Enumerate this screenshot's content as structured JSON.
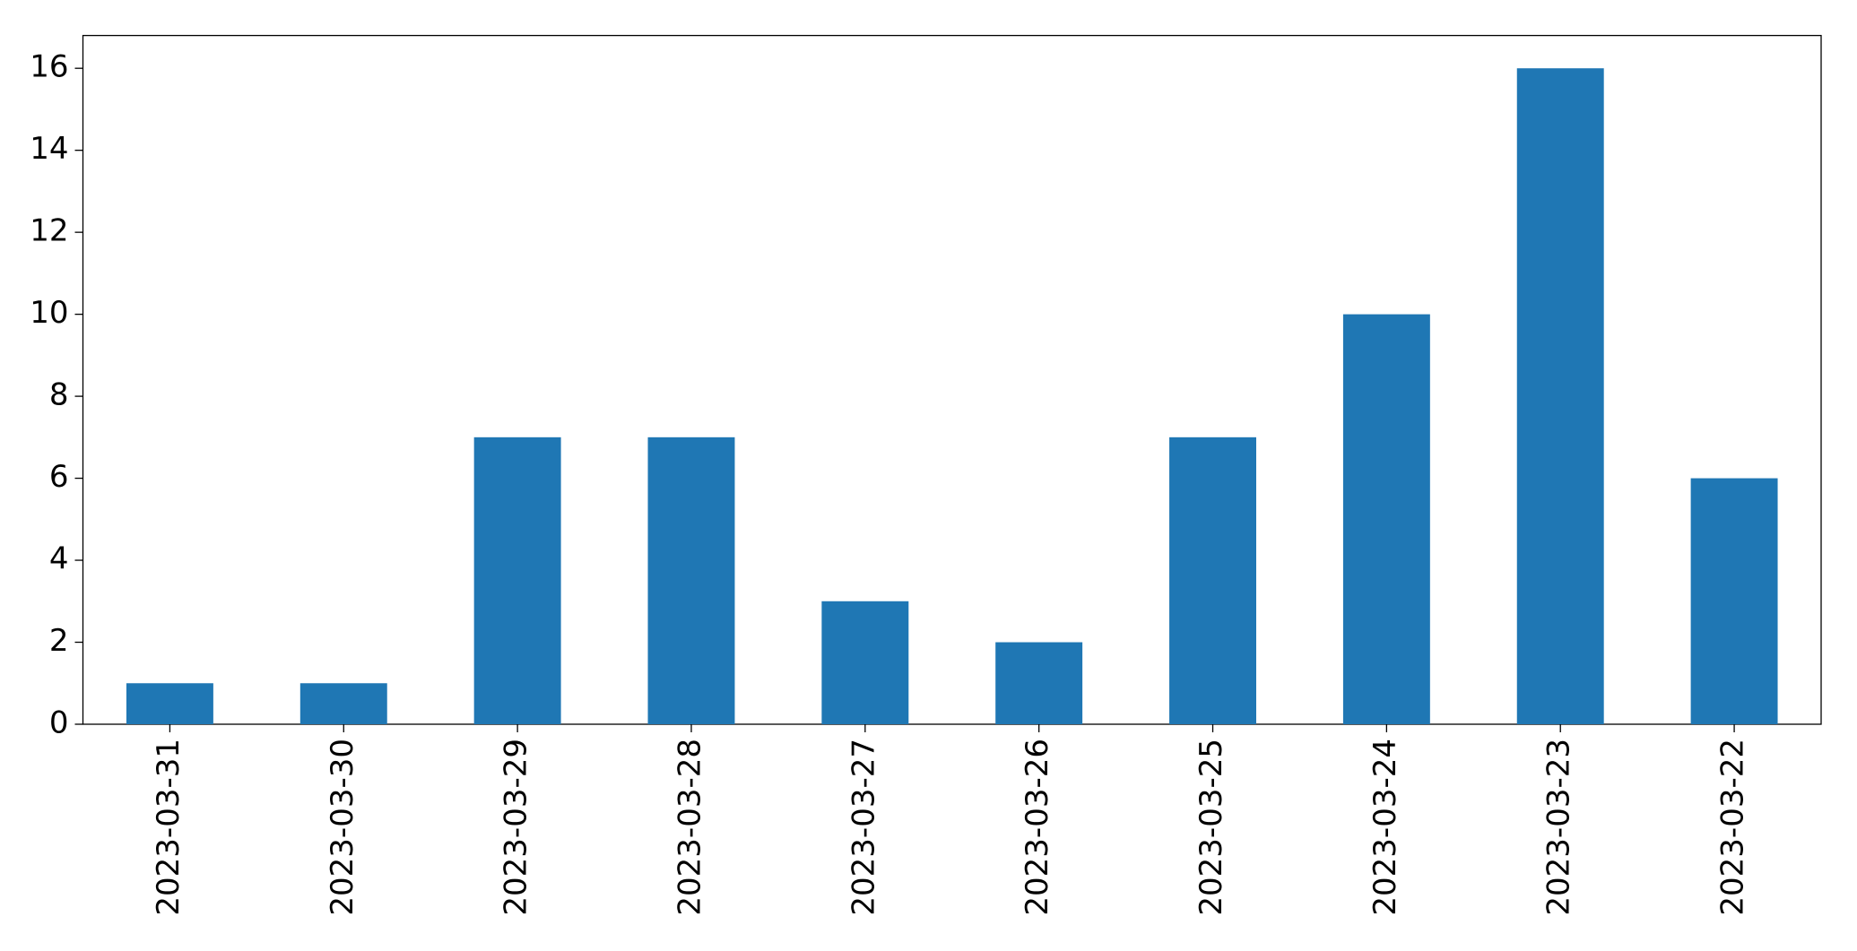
{
  "chart_data": {
    "type": "bar",
    "categories": [
      "2023-03-31",
      "2023-03-30",
      "2023-03-29",
      "2023-03-28",
      "2023-03-27",
      "2023-03-26",
      "2023-03-25",
      "2023-03-24",
      "2023-03-23",
      "2023-03-22"
    ],
    "values": [
      1,
      1,
      7,
      7,
      3,
      2,
      7,
      10,
      16,
      6
    ],
    "color": "#1f77b4",
    "ylim": [
      0,
      16.8
    ],
    "yticks": [
      0,
      2,
      4,
      6,
      8,
      10,
      12,
      14,
      16
    ],
    "grid": false
  }
}
